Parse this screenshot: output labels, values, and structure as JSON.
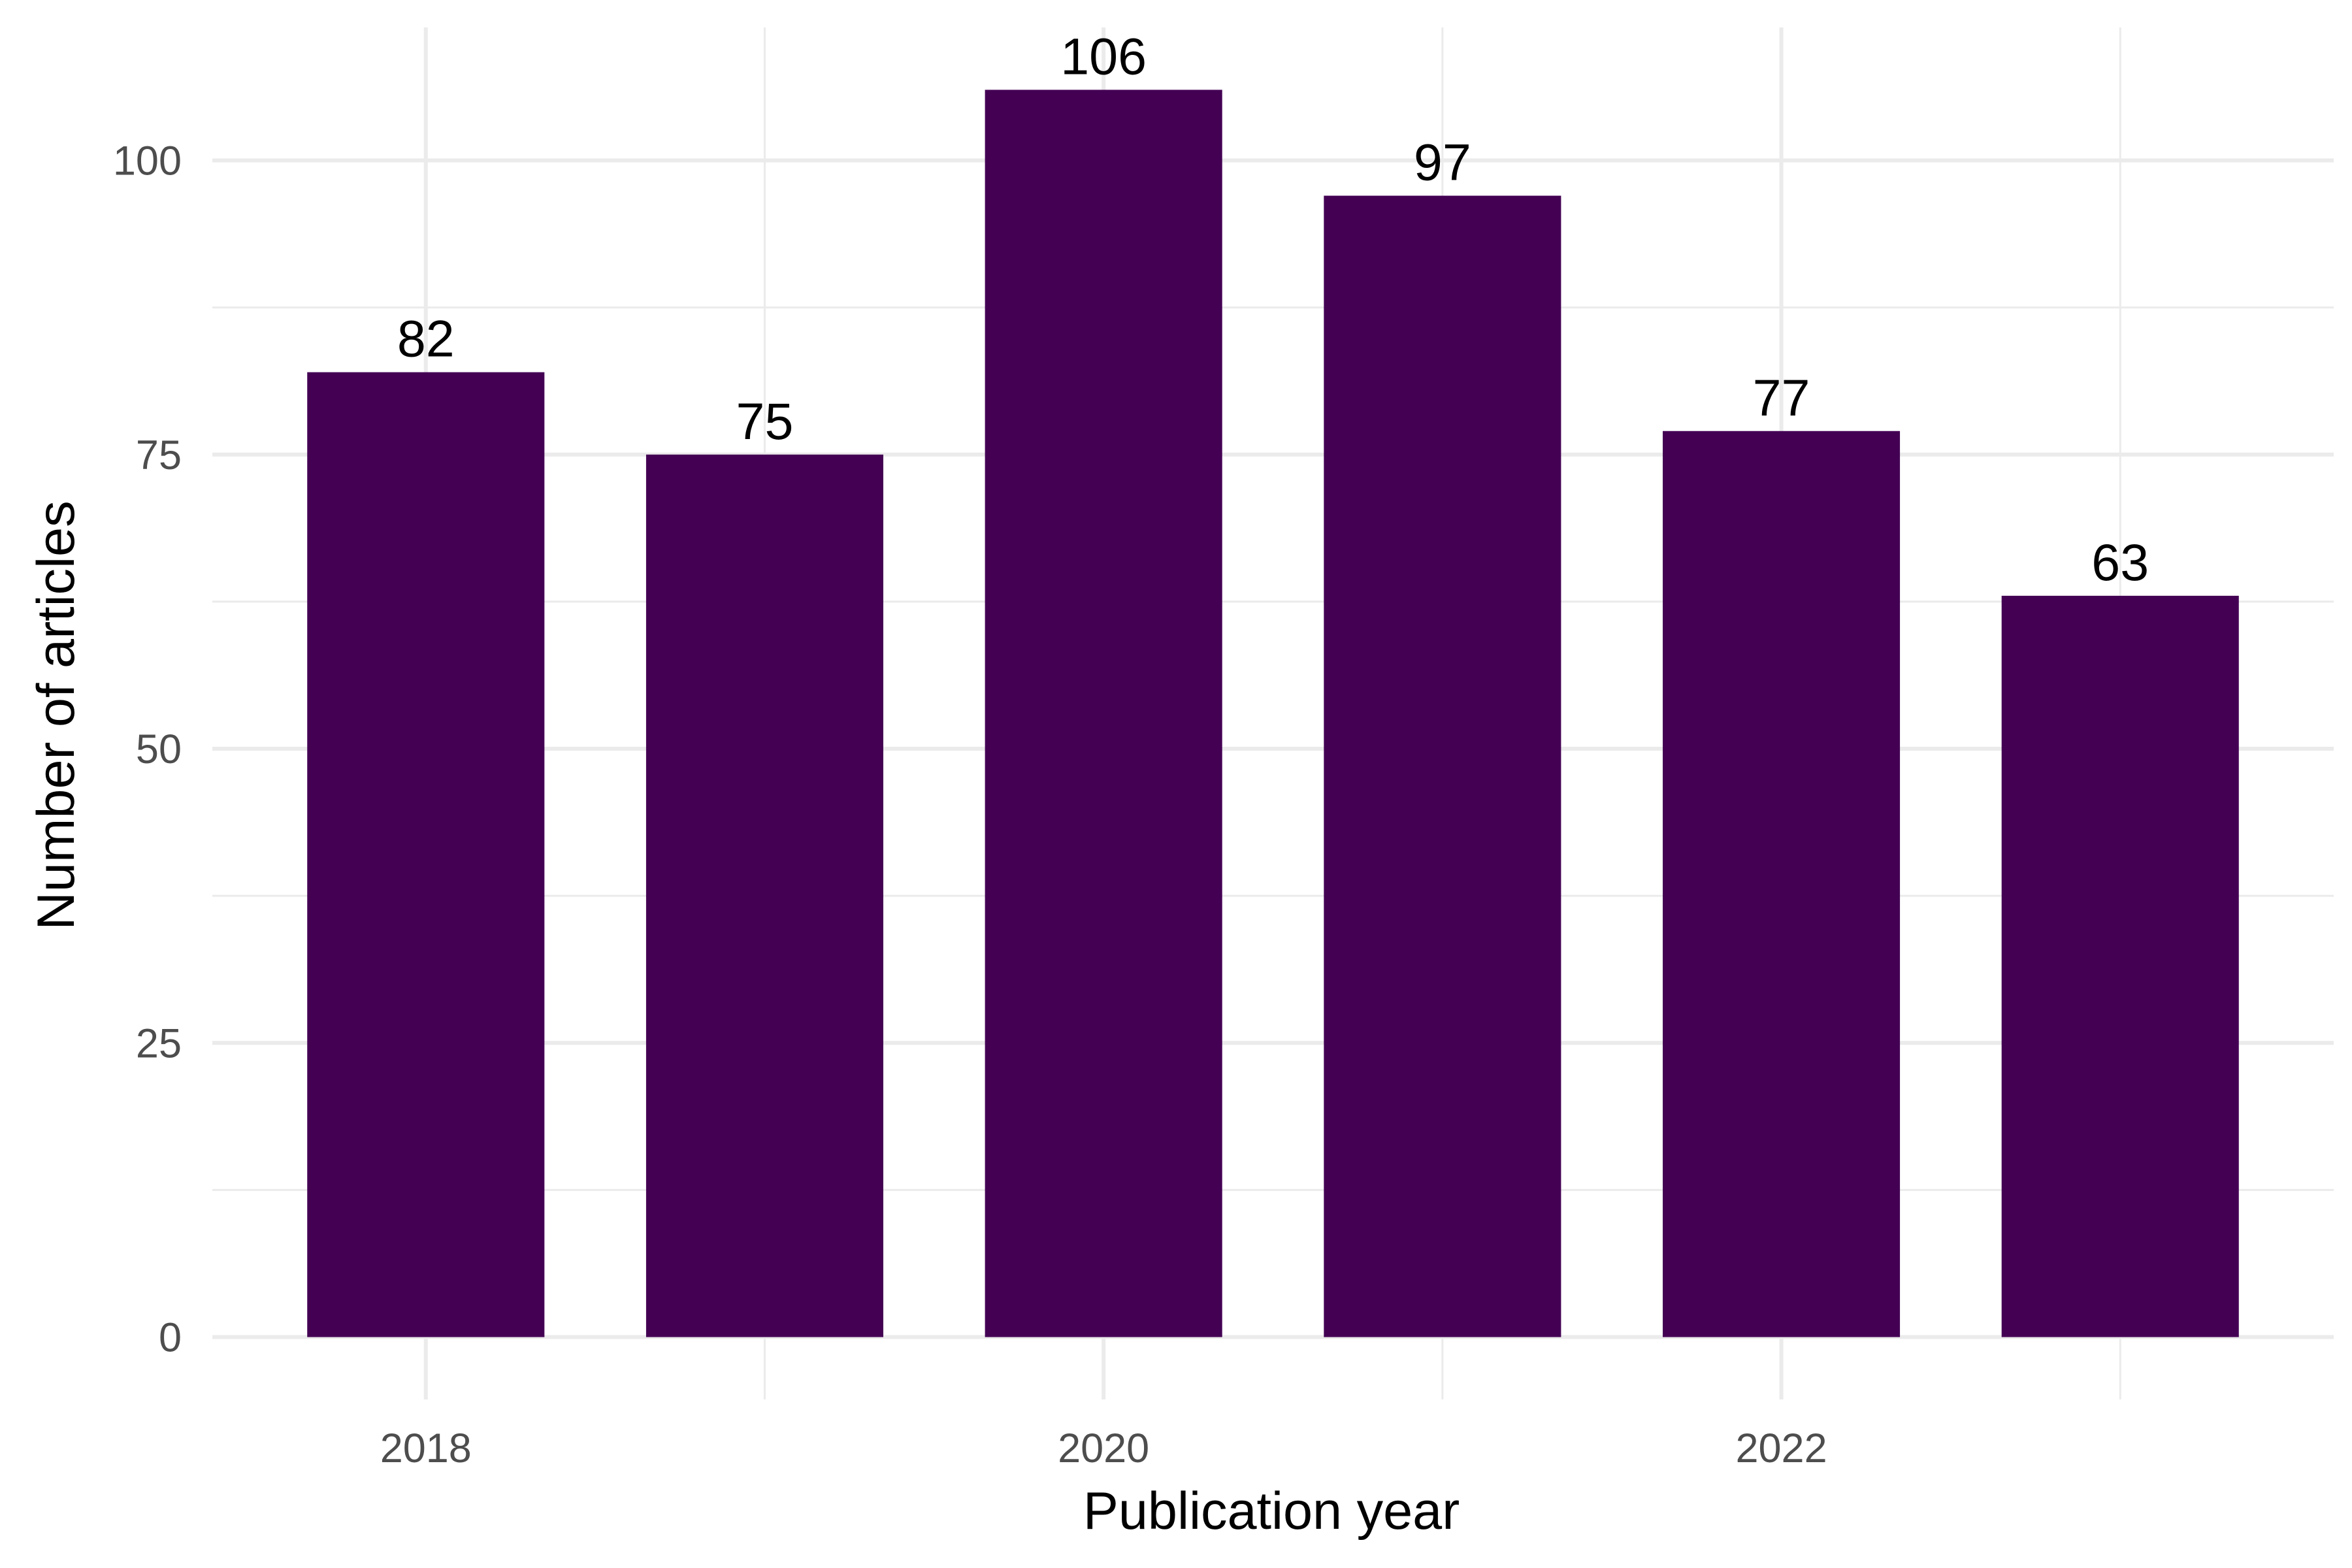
{
  "chart_data": {
    "type": "bar",
    "categories": [
      2018,
      2019,
      2020,
      2021,
      2022,
      2023
    ],
    "values": [
      82,
      75,
      106,
      97,
      77,
      63
    ],
    "data_labels": [
      "82",
      "75",
      "106",
      "97",
      "77",
      "63"
    ],
    "xlabel": "Publication year",
    "ylabel": "Number of articles",
    "x_ticks": [
      2018,
      2020,
      2022
    ],
    "x_tick_labels": [
      "2018",
      "2020",
      "2022"
    ],
    "y_ticks": [
      0,
      25,
      50,
      75,
      100
    ],
    "y_tick_labels": [
      "0",
      "25",
      "50",
      "75",
      "100"
    ],
    "xlim": [
      2017.37,
      2023.63
    ],
    "ylim": [
      -5.3,
      111.3
    ],
    "bar_width_years": 0.7,
    "grid": true,
    "legend": "none",
    "bar_color": "#440154"
  }
}
